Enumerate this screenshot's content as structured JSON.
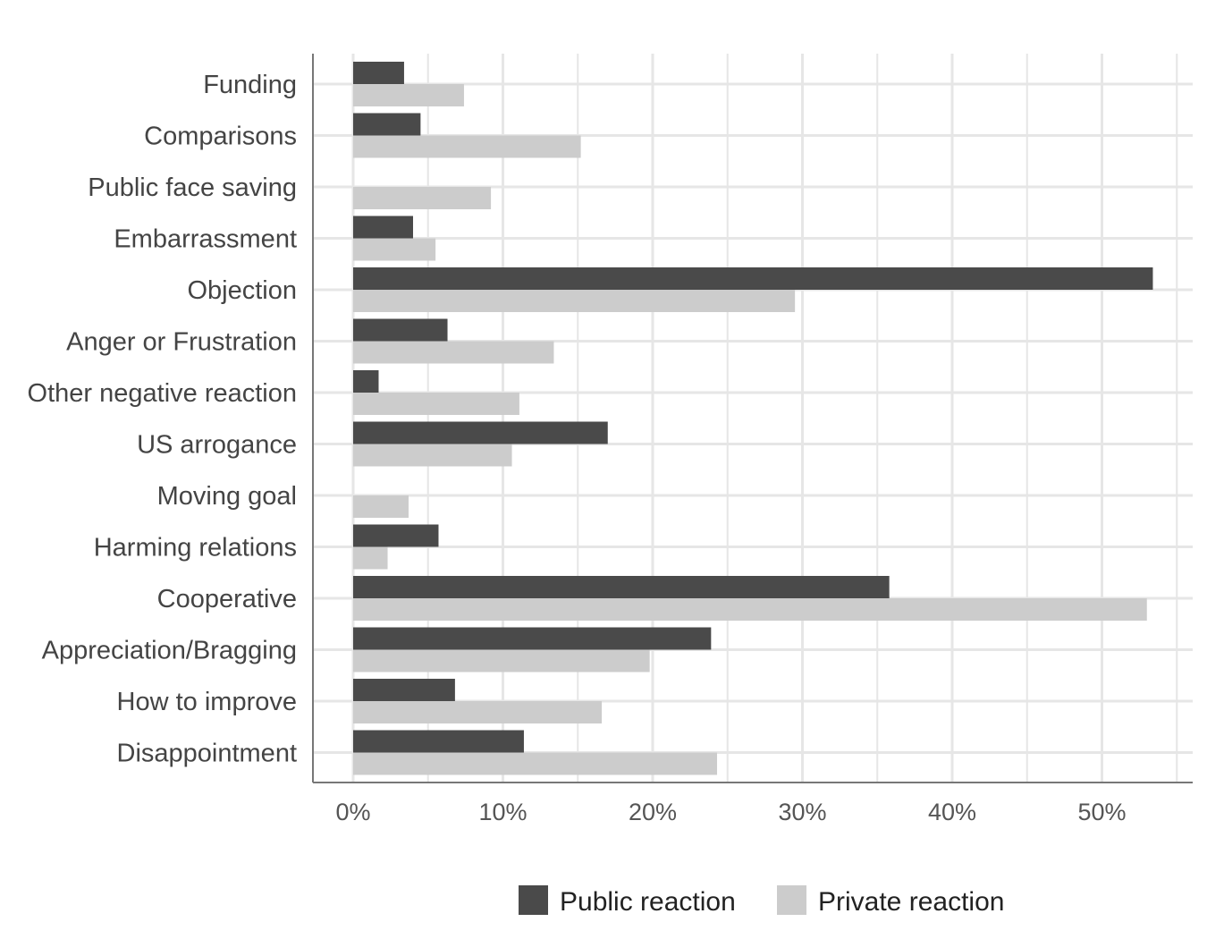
{
  "chart_data": {
    "type": "bar",
    "orientation": "horizontal",
    "categories": [
      "Funding",
      "Comparisons",
      "Public face saving",
      "Embarrassment",
      "Objection",
      "Anger or Frustration",
      "Other negative reaction",
      "US arrogance",
      "Moving goal",
      "Harming relations",
      "Cooperative",
      "Appreciation/Bragging",
      "How to improve",
      "Disappointment"
    ],
    "series": [
      {
        "name": "Public reaction",
        "color": "#4a4a4a",
        "values": [
          3.4,
          4.5,
          0,
          4.0,
          53.4,
          6.3,
          1.7,
          17.0,
          0,
          5.7,
          35.8,
          23.9,
          6.8,
          11.4
        ]
      },
      {
        "name": "Private reaction",
        "color": "#cccccc",
        "values": [
          7.4,
          15.2,
          9.2,
          5.5,
          29.5,
          13.4,
          11.1,
          10.6,
          3.7,
          2.3,
          53.0,
          19.8,
          16.6,
          24.3
        ]
      }
    ],
    "xlim": [
      0,
      55
    ],
    "xticks": [
      0,
      10,
      20,
      30,
      40,
      50
    ],
    "xtick_labels": [
      "0%",
      "10%",
      "20%",
      "30%",
      "40%",
      "50%"
    ],
    "grid": true,
    "legend_position": "bottom",
    "title": "",
    "xlabel": "",
    "ylabel": ""
  }
}
